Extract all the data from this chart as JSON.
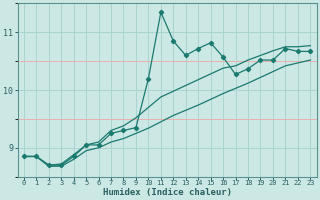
{
  "xlabel": "Humidex (Indice chaleur)",
  "background_color": "#cce8e4",
  "grid_color_major": "#b0d8d4",
  "grid_color_minor": "#e8b8b8",
  "line_color": "#1a7a6e",
  "x_values": [
    0,
    1,
    2,
    3,
    4,
    5,
    6,
    7,
    8,
    9,
    10,
    11,
    12,
    13,
    14,
    15,
    16,
    17,
    18,
    19,
    20,
    21,
    22,
    23
  ],
  "y_zigzag": [
    8.85,
    8.85,
    8.7,
    8.7,
    8.85,
    9.05,
    9.05,
    9.25,
    9.3,
    9.35,
    10.2,
    11.35,
    10.85,
    10.6,
    10.72,
    10.82,
    10.57,
    10.27,
    10.37,
    10.52,
    10.52,
    10.72,
    10.67,
    10.67
  ],
  "y_upper": [
    8.85,
    8.85,
    8.7,
    8.72,
    8.88,
    9.05,
    9.1,
    9.3,
    9.38,
    9.52,
    9.7,
    9.88,
    9.98,
    10.08,
    10.18,
    10.28,
    10.38,
    10.42,
    10.52,
    10.6,
    10.68,
    10.75,
    10.75,
    10.77
  ],
  "y_lower": [
    8.85,
    8.85,
    8.68,
    8.68,
    8.8,
    8.95,
    9.0,
    9.1,
    9.16,
    9.25,
    9.34,
    9.45,
    9.56,
    9.65,
    9.74,
    9.84,
    9.94,
    10.03,
    10.12,
    10.22,
    10.32,
    10.42,
    10.47,
    10.52
  ],
  "ylim": [
    8.5,
    11.5
  ],
  "yticks": [
    9,
    10,
    11
  ],
  "xticks": [
    0,
    1,
    2,
    3,
    4,
    5,
    6,
    7,
    8,
    9,
    10,
    11,
    12,
    13,
    14,
    15,
    16,
    17,
    18,
    19,
    20,
    21,
    22,
    23
  ]
}
